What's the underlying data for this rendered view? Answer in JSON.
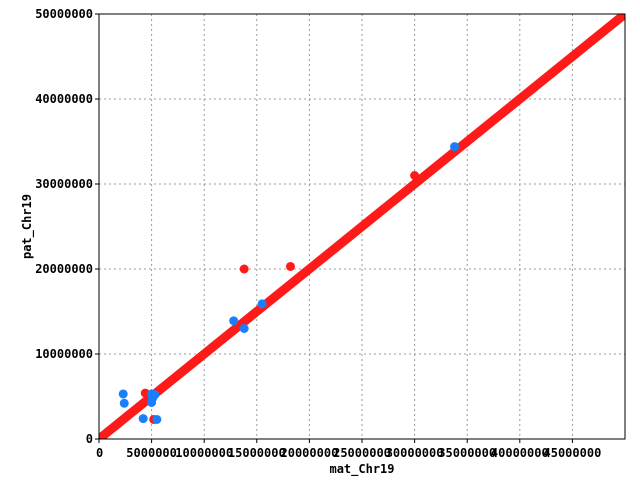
{
  "chart_data": {
    "type": "scatter",
    "title": "",
    "xlabel": "mat_Chr19",
    "ylabel": "pat_Chr19",
    "xlim": [
      0,
      50000000
    ],
    "ylim": [
      0,
      50000000
    ],
    "grid": true,
    "x_ticks": [
      0,
      5000000,
      10000000,
      15000000,
      20000000,
      25000000,
      30000000,
      35000000,
      40000000,
      45000000
    ],
    "x_tick_labels": [
      "0",
      "5000000",
      "10000000",
      "15000000",
      "20000000",
      "25000000",
      "30000000",
      "35000000",
      "40000000",
      "45000000"
    ],
    "y_ticks": [
      0,
      10000000,
      20000000,
      30000000,
      40000000,
      50000000
    ],
    "y_tick_labels": [
      "0",
      "10000000",
      "20000000",
      "30000000",
      "40000000",
      "50000000"
    ],
    "series": [
      {
        "color": "#ff1a1a",
        "diagonal": [
          [
            0,
            0
          ],
          [
            50000000,
            50000000
          ]
        ],
        "points": [
          [
            4400000,
            5400000
          ],
          [
            13800000,
            20000000
          ],
          [
            18200000,
            20300000
          ],
          [
            5200000,
            2300000
          ],
          [
            30000000,
            31000000
          ]
        ]
      },
      {
        "color": "#1a7fff",
        "points": [
          [
            2300000,
            5300000
          ],
          [
            2400000,
            4200000
          ],
          [
            4200000,
            2400000
          ],
          [
            5500000,
            2300000
          ],
          [
            5000000,
            4300000
          ],
          [
            5100000,
            4800000
          ],
          [
            5300000,
            5200000
          ],
          [
            5000000,
            5300000
          ],
          [
            12800000,
            13900000
          ],
          [
            13800000,
            13000000
          ],
          [
            15500000,
            15900000
          ],
          [
            33800000,
            34400000
          ]
        ]
      }
    ]
  }
}
